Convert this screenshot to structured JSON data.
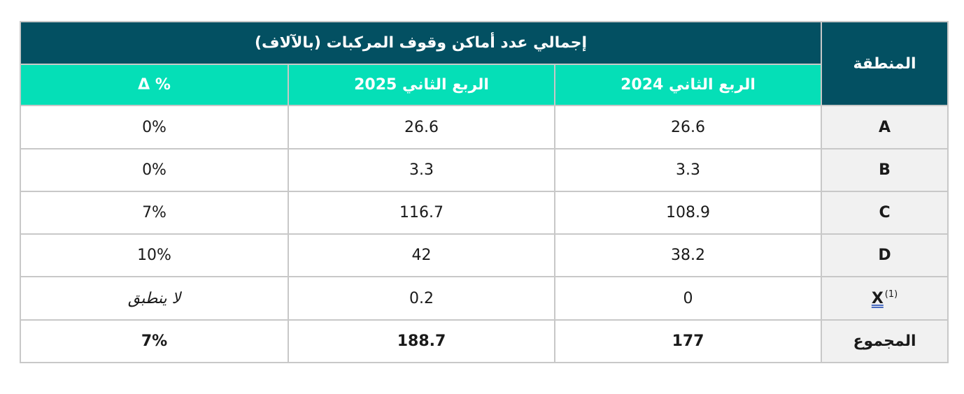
{
  "table": {
    "region_header": "المنطقة",
    "group_header": "إجمالي عدد أماكن وقوف المركبات (بالآلاف)",
    "columns": [
      "الربع الثاني 2024",
      "الربع الثاني 2025",
      "Δ %"
    ],
    "rows": [
      {
        "region": "A",
        "sup": "",
        "q2_2024": "26.6",
        "q2_2025": "26.6",
        "delta": "0%"
      },
      {
        "region": "B",
        "sup": "",
        "q2_2024": "3.3",
        "q2_2025": "3.3",
        "delta": "0%"
      },
      {
        "region": "C",
        "sup": "",
        "q2_2024": "108.9",
        "q2_2025": "116.7",
        "delta": "7%"
      },
      {
        "region": "D",
        "sup": "",
        "q2_2024": "38.2",
        "q2_2025": "42",
        "delta": "10%"
      },
      {
        "region": "X",
        "sup": "(1)",
        "q2_2024": "0",
        "q2_2025": "0.2",
        "delta": "لا ينطبق"
      }
    ],
    "total": {
      "label": "المجموع",
      "q2_2024": "177",
      "q2_2025": "188.7",
      "delta": "7%"
    }
  },
  "colors": {
    "header_dark": "#035062",
    "header_accent": "#05dfb7",
    "label_bg": "#f1f1f1",
    "border": "#c8c8c8"
  }
}
